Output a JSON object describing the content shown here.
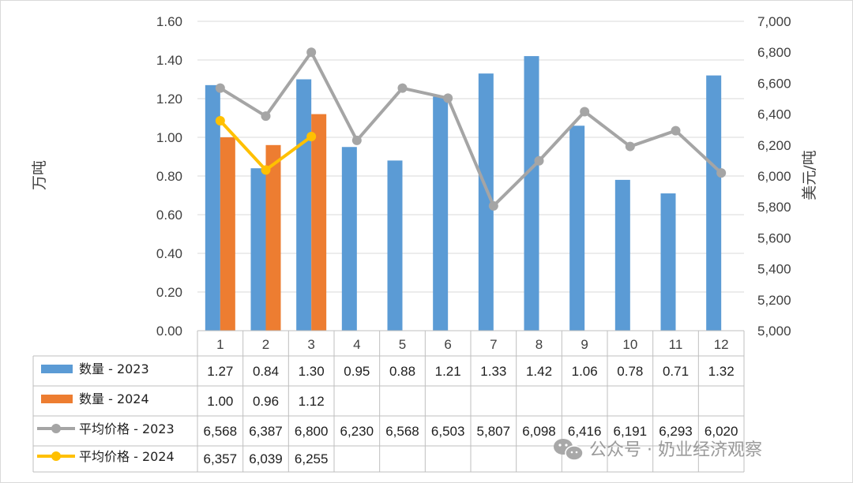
{
  "chart_data": {
    "type": "bar",
    "categories": [
      "1",
      "2",
      "3",
      "4",
      "5",
      "6",
      "7",
      "8",
      "9",
      "10",
      "11",
      "12"
    ],
    "series": [
      {
        "name": "数量 - 2023",
        "type": "bar",
        "axis": "left",
        "color": "#5b9bd5",
        "values": [
          1.27,
          0.84,
          1.3,
          0.95,
          0.88,
          1.21,
          1.33,
          1.42,
          1.06,
          0.78,
          0.71,
          1.32
        ],
        "labels": [
          "1.27",
          "0.84",
          "1.30",
          "0.95",
          "0.88",
          "1.21",
          "1.33",
          "1.42",
          "1.06",
          "0.78",
          "0.71",
          "1.32"
        ]
      },
      {
        "name": "数量 - 2024",
        "type": "bar",
        "axis": "left",
        "color": "#ed7d31",
        "values": [
          1.0,
          0.96,
          1.12,
          null,
          null,
          null,
          null,
          null,
          null,
          null,
          null,
          null
        ],
        "labels": [
          "1.00",
          "0.96",
          "1.12",
          "",
          "",
          "",
          "",
          "",
          "",
          "",
          "",
          ""
        ]
      },
      {
        "name": "平均价格 - 2023",
        "type": "line",
        "axis": "right",
        "color": "#a5a5a5",
        "values": [
          6568,
          6387,
          6800,
          6230,
          6568,
          6503,
          5807,
          6098,
          6416,
          6191,
          6293,
          6020
        ],
        "labels": [
          "6,568",
          "6,387",
          "6,800",
          "6,230",
          "6,568",
          "6,503",
          "5,807",
          "6,098",
          "6,416",
          "6,191",
          "6,293",
          "6,020"
        ]
      },
      {
        "name": "平均价格 - 2024",
        "type": "line",
        "axis": "right",
        "color": "#ffc000",
        "values": [
          6357,
          6039,
          6255,
          null,
          null,
          null,
          null,
          null,
          null,
          null,
          null,
          null
        ],
        "labels": [
          "6,357",
          "6,039",
          "6,255",
          "",
          "",
          "",
          "",
          "",
          "",
          "",
          "",
          ""
        ]
      }
    ],
    "ylabel": "万吨",
    "y2label": "美元/吨",
    "ylim": [
      0,
      1.6
    ],
    "y2lim": [
      5000,
      7000
    ],
    "yticks": [
      "0.00",
      "0.20",
      "0.40",
      "0.60",
      "0.80",
      "1.00",
      "1.20",
      "1.40",
      "1.60"
    ],
    "y2ticks": [
      "5,000",
      "5,200",
      "5,400",
      "5,600",
      "5,800",
      "6,000",
      "6,200",
      "6,400",
      "6,600",
      "6,800",
      "7,000"
    ],
    "grid": true,
    "legend": "data-table"
  },
  "watermark": "公众号 · 奶业经济观察",
  "watermark_icon": "wechat-icon"
}
